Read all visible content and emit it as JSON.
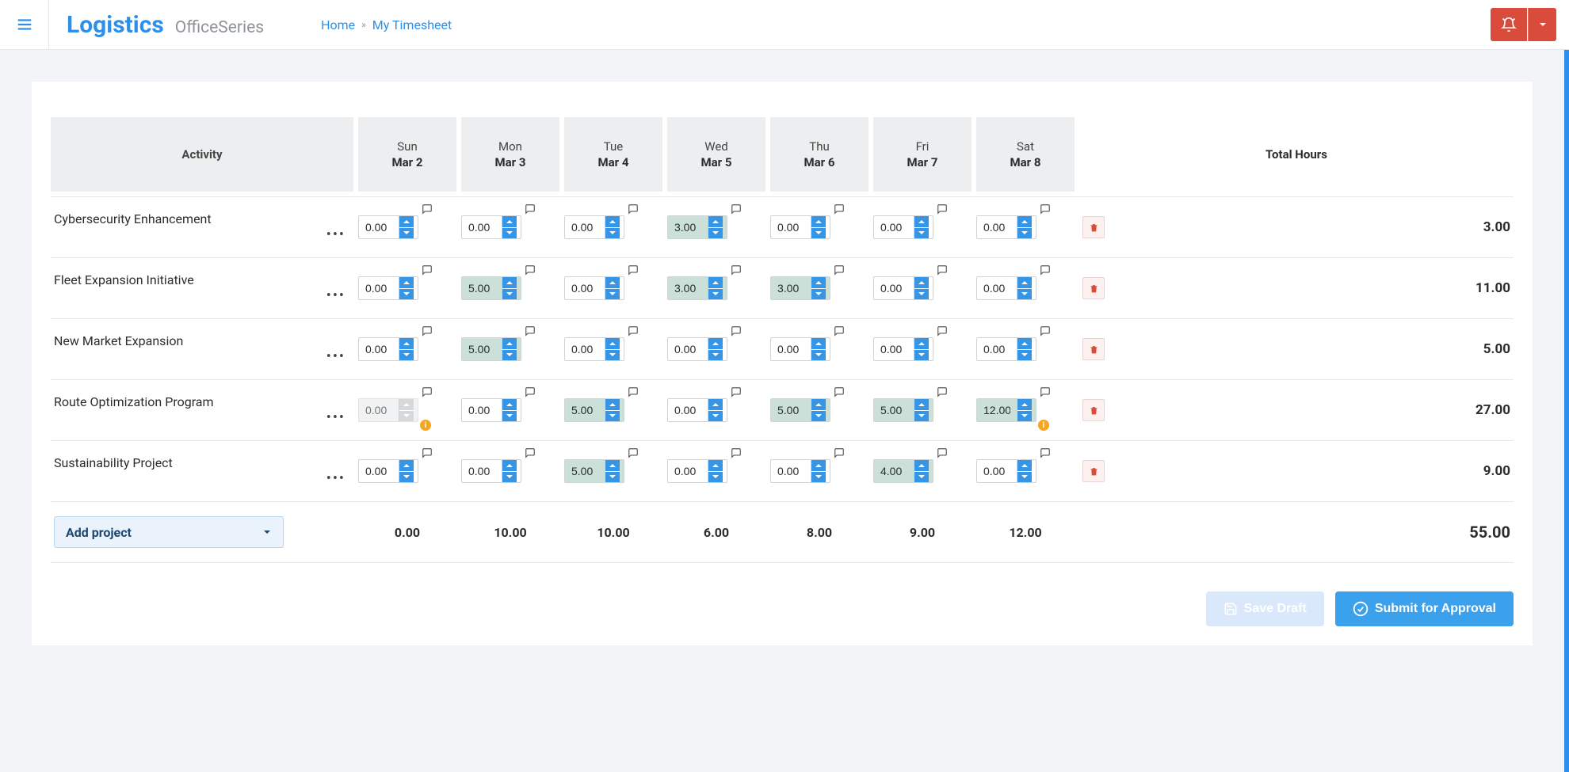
{
  "brand": {
    "main": "Logistics",
    "sub": "OfficeSeries"
  },
  "breadcrumb": {
    "home": "Home",
    "current": "My Timesheet"
  },
  "colors": {
    "accent": "#2f8fe8",
    "danger": "#d94b3a",
    "filled_bg": "#cbe0d9",
    "warn": "#f5a623",
    "header_bg": "#eceeef"
  },
  "table": {
    "activity_header": "Activity",
    "total_header": "Total Hours",
    "days": [
      {
        "dow": "Sun",
        "date": "Mar 2"
      },
      {
        "dow": "Mon",
        "date": "Mar 3"
      },
      {
        "dow": "Tue",
        "date": "Mar 4"
      },
      {
        "dow": "Wed",
        "date": "Mar 5"
      },
      {
        "dow": "Thu",
        "date": "Mar 6"
      },
      {
        "dow": "Fri",
        "date": "Mar 7"
      },
      {
        "dow": "Sat",
        "date": "Mar 8"
      }
    ],
    "rows": [
      {
        "activity": "Cybersecurity Enhancement",
        "cells": [
          {
            "val": "0.00"
          },
          {
            "val": "0.00"
          },
          {
            "val": "0.00"
          },
          {
            "val": "3.00",
            "filled": true
          },
          {
            "val": "0.00"
          },
          {
            "val": "0.00"
          },
          {
            "val": "0.00"
          }
        ],
        "total": "3.00"
      },
      {
        "activity": "Fleet Expansion Initiative",
        "cells": [
          {
            "val": "0.00"
          },
          {
            "val": "5.00",
            "filled": true
          },
          {
            "val": "0.00"
          },
          {
            "val": "3.00",
            "filled": true
          },
          {
            "val": "3.00",
            "filled": true
          },
          {
            "val": "0.00"
          },
          {
            "val": "0.00"
          }
        ],
        "total": "11.00"
      },
      {
        "activity": "New Market Expansion",
        "cells": [
          {
            "val": "0.00"
          },
          {
            "val": "5.00",
            "filled": true
          },
          {
            "val": "0.00"
          },
          {
            "val": "0.00"
          },
          {
            "val": "0.00"
          },
          {
            "val": "0.00"
          },
          {
            "val": "0.00"
          }
        ],
        "total": "5.00"
      },
      {
        "activity": "Route Optimization Program",
        "cells": [
          {
            "val": "0.00",
            "disabled": true,
            "warn": true
          },
          {
            "val": "0.00"
          },
          {
            "val": "5.00",
            "filled": true
          },
          {
            "val": "0.00"
          },
          {
            "val": "5.00",
            "filled": true
          },
          {
            "val": "5.00",
            "filled": true
          },
          {
            "val": "12.00",
            "filled": true,
            "warn": true
          }
        ],
        "total": "27.00"
      },
      {
        "activity": "Sustainability Project",
        "cells": [
          {
            "val": "0.00"
          },
          {
            "val": "0.00"
          },
          {
            "val": "5.00",
            "filled": true
          },
          {
            "val": "0.00"
          },
          {
            "val": "0.00"
          },
          {
            "val": "4.00",
            "filled": true
          },
          {
            "val": "0.00"
          }
        ],
        "total": "9.00"
      }
    ],
    "add_project_label": "Add project",
    "day_totals": [
      "0.00",
      "10.00",
      "10.00",
      "6.00",
      "8.00",
      "9.00",
      "12.00"
    ],
    "grand_total": "55.00"
  },
  "actions": {
    "save_draft": "Save Draft",
    "submit": "Submit for Approval"
  }
}
